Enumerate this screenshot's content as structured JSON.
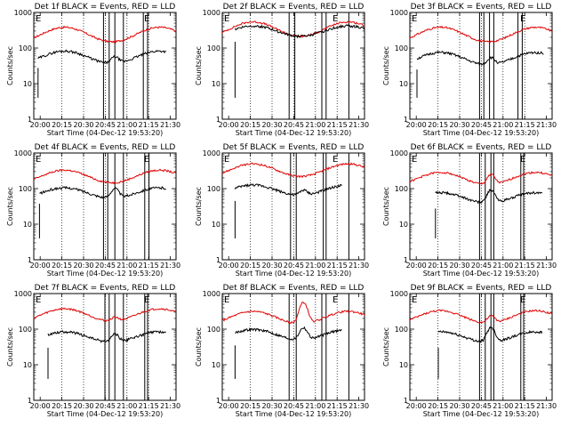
{
  "chart_data": [
    {
      "type": "line",
      "title": "Det 1f BLACK = Events, RED = LLD",
      "flag": "E",
      "marks": [
        [
          [
            0.06,
            0.18
          ],
          [
            0.47,
            0.86
          ]
        ],
        [
          [
            0.49,
            0.53
          ],
          [
            0.57,
            0.63
          ],
          [
            0.77,
            0.8
          ]
        ]
      ],
      "red": {
        "base": 240,
        "amp": 1.6,
        "bump": 0.0,
        "start": 0
      },
      "black": {
        "base": 55,
        "amp": 1.5,
        "bump": 0.55,
        "start": 0.03,
        "end": 0.93
      }
    },
    {
      "type": "line",
      "title": "Det 2f BLACK = Events, RED = LLD",
      "flag": "E",
      "marks": [
        [
          [
            0.15
          ],
          [
            0.45,
            0.85
          ]
        ],
        [
          [
            0.47,
            0.51
          ],
          [
            0.7,
            0.73
          ],
          [
            0.89
          ]
        ]
      ],
      "red": {
        "base": 340,
        "amp": 1.6,
        "bump": 0.0,
        "start": 0
      },
      "black": {
        "base": 300,
        "amp": 1.4,
        "bump": 0.0,
        "start": 0.09,
        "end": 1.0
      }
    },
    {
      "type": "line",
      "title": "Det 3f BLACK = Events, RED = LLD",
      "flag": "E",
      "marks": [
        [
          [
            0.16
          ],
          [
            0.49,
            0.52
          ],
          [
            0.56,
            0.59
          ]
        ],
        [
          [
            0.49,
            0.52
          ],
          [
            0.56,
            0.59
          ],
          [
            0.76,
            0.79
          ]
        ]
      ],
      "red": {
        "base": 240,
        "amp": 1.6,
        "bump": 0.0,
        "start": 0
      },
      "black": {
        "base": 50,
        "amp": 1.5,
        "bump": 0.6,
        "start": 0.05,
        "end": 0.94
      }
    },
    {
      "type": "line",
      "title": "Det 4f BLACK = Events, RED = LLD",
      "flag": "E",
      "marks": [
        [
          [
            0.06,
            0.16
          ],
          [
            0.46,
            0.86
          ]
        ],
        [
          [
            0.49,
            0.52
          ],
          [
            0.57,
            0.63
          ],
          [
            0.78,
            0.81
          ]
        ]
      ],
      "red": {
        "base": 220,
        "amp": 1.5,
        "bump": 0.0,
        "start": 0
      },
      "black": {
        "base": 75,
        "amp": 1.4,
        "bump": 0.9,
        "start": 0.04,
        "end": 0.93
      }
    },
    {
      "type": "line",
      "title": "Det 5f BLACK = Events, RED = LLD",
      "flag": "E",
      "marks": [
        [
          [
            0.14
          ],
          [
            0.46,
            0.85
          ]
        ],
        [
          [
            0.48,
            0.52
          ],
          [
            0.71,
            0.73
          ],
          [
            0.89
          ]
        ]
      ],
      "red": {
        "base": 330,
        "amp": 1.5,
        "bump": 0.0,
        "start": 0
      },
      "black": {
        "base": 90,
        "amp": 1.4,
        "bump": 0.4,
        "start": 0.09,
        "end": 0.84
      }
    },
    {
      "type": "line",
      "title": "Det 6f BLACK = Events, RED = LLD",
      "flag": "E",
      "marks": [
        [
          [
            0.17
          ],
          [
            0.48,
            0.53
          ],
          [
            0.57,
            0.59
          ]
        ],
        [
          [
            0.49,
            0.53
          ],
          [
            0.57,
            0.59
          ],
          [
            0.78,
            0.8
          ]
        ]
      ],
      "red": {
        "base": 190,
        "amp": 1.5,
        "bump": 1.0,
        "start": 0
      },
      "black": {
        "base": 55,
        "amp": 1.4,
        "bump": 1.3,
        "start": 0.18,
        "end": 0.93
      }
    },
    {
      "type": "line",
      "title": "Det 7f BLACK = Events, RED = LLD",
      "flag": "E",
      "marks": [
        [
          [
            0.06,
            0.17
          ],
          [
            0.48,
            0.86
          ]
        ],
        [
          [
            0.5,
            0.53
          ],
          [
            0.57,
            0.63
          ],
          [
            0.78,
            0.8
          ]
        ]
      ],
      "red": {
        "base": 250,
        "amp": 1.5,
        "bump": 0.3,
        "start": 0
      },
      "black": {
        "base": 60,
        "amp": 1.4,
        "bump": 0.7,
        "start": 0.1,
        "end": 0.93
      }
    },
    {
      "type": "line",
      "title": "Det 8f BLACK = Events, RED = LLD",
      "flag": "E",
      "marks": [
        [
          [
            0.15
          ],
          [
            0.46,
            0.85
          ]
        ],
        [
          [
            0.47,
            0.52
          ],
          [
            0.7,
            0.73
          ],
          [
            0.89
          ]
        ]
      ],
      "red": {
        "base": 210,
        "amp": 1.5,
        "bump": 3.0,
        "start": 0
      },
      "black": {
        "base": 70,
        "amp": 1.4,
        "bump": 1.2,
        "start": 0.09,
        "end": 0.84
      }
    },
    {
      "type": "line",
      "title": "Det 9f BLACK = Events, RED = LLD",
      "flag": "E",
      "marks": [
        [
          [
            0.17
          ],
          [
            0.48,
            0.52
          ],
          [
            0.56,
            0.59
          ]
        ],
        [
          [
            0.49,
            0.53
          ],
          [
            0.57,
            0.59
          ],
          [
            0.78,
            0.8
          ]
        ]
      ],
      "red": {
        "base": 220,
        "amp": 1.5,
        "bump": 0.6,
        "start": 0
      },
      "black": {
        "base": 60,
        "amp": 1.4,
        "bump": 1.6,
        "start": 0.2,
        "end": 0.93
      }
    }
  ],
  "axes": {
    "ylabel": "Counts/sec",
    "xlabel": "Start Time (04-Dec-12 19:53:20)",
    "xticks": [
      "20:00",
      "20:15",
      "20:30",
      "20:45",
      "21:00",
      "21:15",
      "21:30"
    ],
    "yticks": [
      "1",
      "10",
      "100",
      "1000"
    ],
    "ylim": [
      1,
      1000
    ],
    "yscale": "log",
    "grid": "vertical-dotted",
    "colors": {
      "events": "#000000",
      "lld": "#e00000"
    }
  }
}
